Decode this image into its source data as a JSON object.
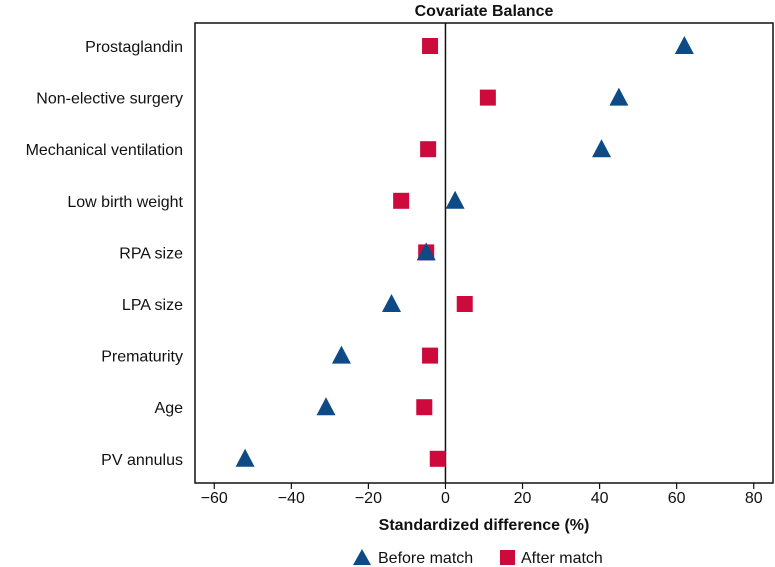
{
  "chart_data": {
    "type": "scatter",
    "title": "Covariate Balance",
    "xlabel": "Standardized difference (%)",
    "ylabel": "",
    "xlim": [
      -65,
      85
    ],
    "xticks": [
      -60,
      -40,
      -20,
      0,
      20,
      40,
      60,
      80
    ],
    "xtick_labels": [
      "−60",
      "−40",
      "−20",
      "0",
      "20",
      "40",
      "60",
      "80"
    ],
    "categories": [
      "Prostaglandin",
      "Non-elective surgery",
      "Mechanical ventilation",
      "Low birth weight",
      "RPA size",
      "LPA size",
      "Prematurity",
      "Age",
      "PV annulus"
    ],
    "series": [
      {
        "name": "Before match",
        "marker": "triangle",
        "color": "#0d4a86",
        "values": [
          62,
          45,
          40.5,
          2.5,
          -5,
          -14,
          -27,
          -31,
          -52
        ]
      },
      {
        "name": "After match",
        "marker": "square",
        "color": "#cc0a3c",
        "values": [
          -4,
          11,
          -4.5,
          -11.5,
          -5,
          5,
          -4,
          -5.5,
          -2
        ]
      }
    ],
    "reference_line": 0,
    "legend_position": "bottom-center",
    "grid": false
  }
}
